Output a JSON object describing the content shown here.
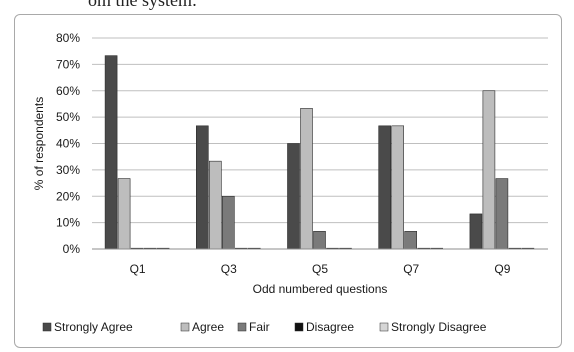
{
  "page_text": {
    "top_fragment": "om the system:"
  },
  "chart_data": {
    "type": "bar",
    "title": "",
    "xlabel": "Odd numbered questions",
    "ylabel": "% of respondents",
    "categories": [
      "Q1",
      "Q3",
      "Q5",
      "Q7",
      "Q9"
    ],
    "ylim": [
      0,
      80
    ],
    "yticks": [
      0,
      10,
      20,
      30,
      40,
      50,
      60,
      70,
      80
    ],
    "ytick_labels": [
      "0%",
      "10%",
      "20%",
      "30%",
      "40%",
      "50%",
      "60%",
      "70%",
      "80%"
    ],
    "grid": true,
    "legend_position": "bottom",
    "series": [
      {
        "name": "Strongly Agree",
        "color": "#4a4a4a",
        "values": [
          73.3,
          46.7,
          40,
          46.7,
          13.3
        ]
      },
      {
        "name": "Agree",
        "color": "#bdbdbd",
        "values": [
          26.7,
          33.3,
          53.3,
          46.7,
          60
        ]
      },
      {
        "name": "Fair",
        "color": "#7a7a7a",
        "values": [
          0,
          20,
          6.7,
          6.7,
          26.7
        ]
      },
      {
        "name": "Disagree",
        "color": "#111111",
        "values": [
          0,
          0,
          0,
          0,
          0
        ]
      },
      {
        "name": "Strongly Disagree",
        "color": "#d6d6d6",
        "values": [
          0,
          0,
          0,
          0,
          0
        ]
      }
    ]
  }
}
